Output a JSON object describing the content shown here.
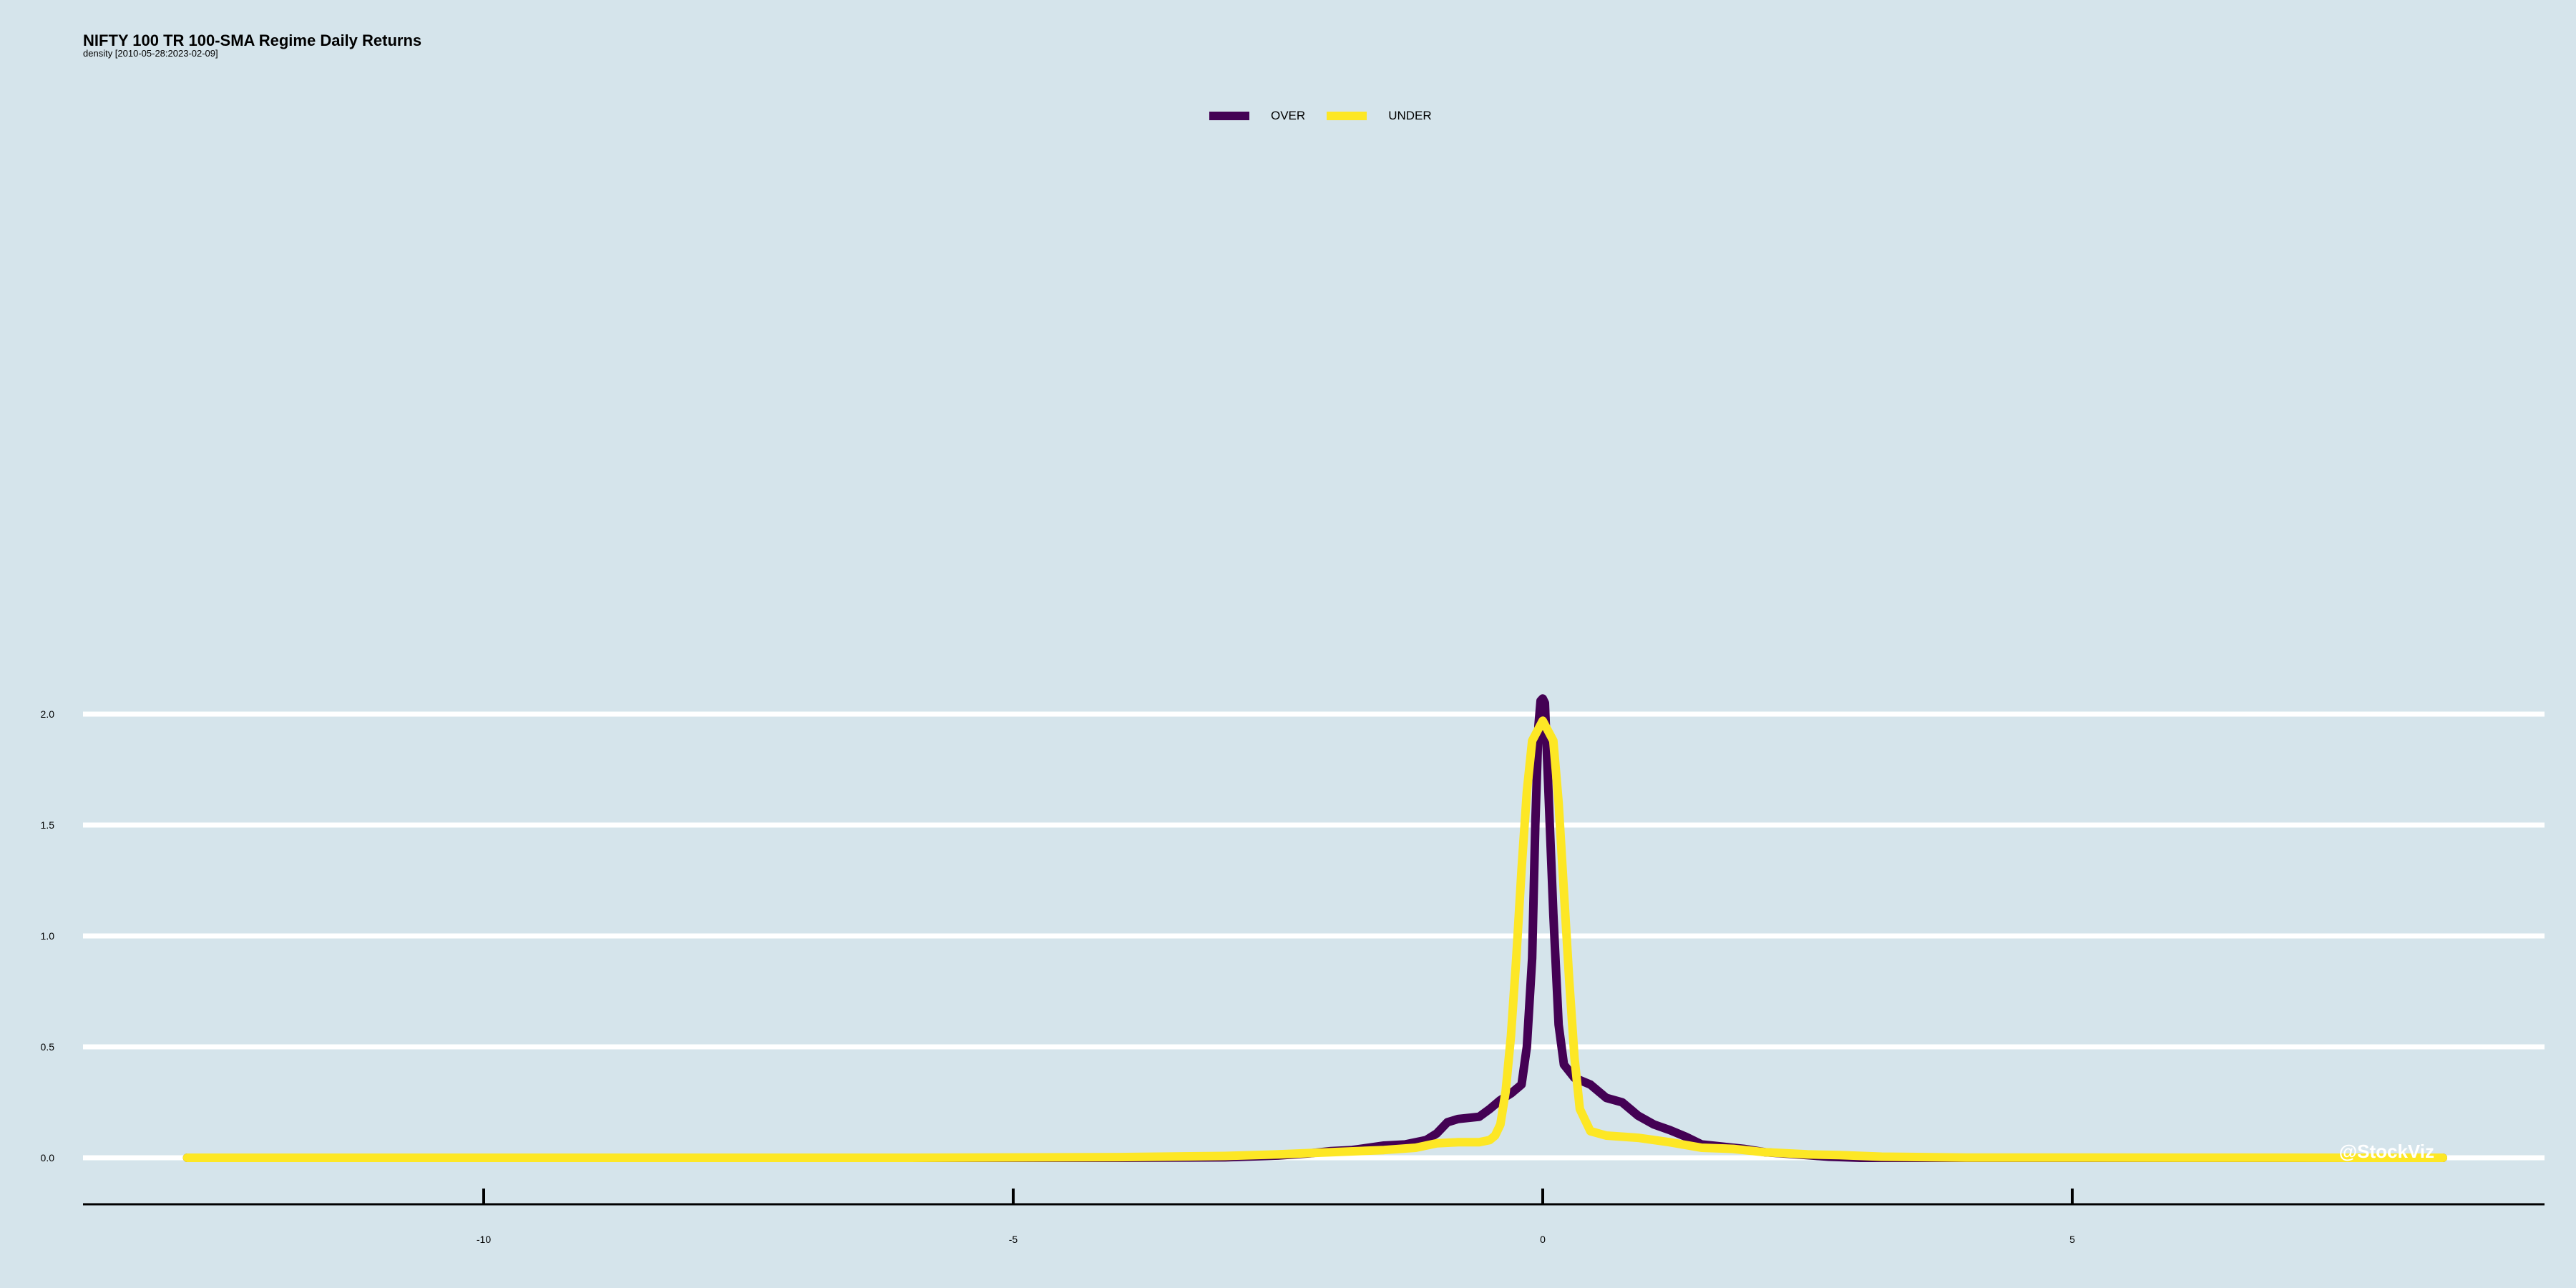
{
  "chart_data": {
    "type": "line",
    "title": "NIFTY 100 TR 100-SMA Regime Daily Returns",
    "subtitle": "density [2010-05-28:2023-02-09]",
    "xlabel": "",
    "ylabel": "",
    "xlim": [
      -13.8,
      9.5
    ],
    "ylim": [
      -0.1,
      2.3
    ],
    "x_ticks": [
      -10,
      -5,
      0,
      5
    ],
    "x_tick_labels": [
      "-10",
      "-5",
      "0",
      "5"
    ],
    "y_ticks": [
      0.0,
      0.5,
      1.0,
      1.5,
      2.0
    ],
    "y_tick_labels": [
      "0.0",
      "0.5",
      "1.0",
      "1.5",
      "2.0"
    ],
    "grid": "horizontal",
    "legend_position": "top",
    "watermark": "@StockViz",
    "colors": {
      "background": "#d5e4eb",
      "over": "#440154",
      "under": "#fde725",
      "grid": "#ffffff"
    },
    "series": [
      {
        "name": "OVER",
        "color": "#440154",
        "points": [
          [
            -12.8,
            0.0
          ],
          [
            -6.0,
            0.0
          ],
          [
            -4.0,
            0.0
          ],
          [
            -3.0,
            0.002
          ],
          [
            -2.5,
            0.01
          ],
          [
            -2.2,
            0.02
          ],
          [
            -2.0,
            0.03
          ],
          [
            -1.8,
            0.035
          ],
          [
            -1.5,
            0.055
          ],
          [
            -1.3,
            0.06
          ],
          [
            -1.1,
            0.08
          ],
          [
            -1.0,
            0.11
          ],
          [
            -0.9,
            0.16
          ],
          [
            -0.8,
            0.175
          ],
          [
            -0.6,
            0.185
          ],
          [
            -0.5,
            0.22
          ],
          [
            -0.4,
            0.26
          ],
          [
            -0.3,
            0.29
          ],
          [
            -0.2,
            0.33
          ],
          [
            -0.15,
            0.5
          ],
          [
            -0.1,
            0.9
          ],
          [
            -0.07,
            1.5
          ],
          [
            -0.04,
            1.95
          ],
          [
            -0.02,
            2.06
          ],
          [
            0.0,
            2.07
          ],
          [
            0.02,
            2.05
          ],
          [
            0.05,
            1.7
          ],
          [
            0.1,
            1.1
          ],
          [
            0.15,
            0.6
          ],
          [
            0.2,
            0.42
          ],
          [
            0.3,
            0.36
          ],
          [
            0.45,
            0.33
          ],
          [
            0.6,
            0.27
          ],
          [
            0.75,
            0.25
          ],
          [
            0.9,
            0.19
          ],
          [
            1.05,
            0.15
          ],
          [
            1.2,
            0.125
          ],
          [
            1.35,
            0.095
          ],
          [
            1.5,
            0.06
          ],
          [
            1.7,
            0.05
          ],
          [
            1.9,
            0.04
          ],
          [
            2.1,
            0.025
          ],
          [
            2.4,
            0.015
          ],
          [
            2.7,
            0.005
          ],
          [
            3.0,
            0.0
          ],
          [
            8.5,
            0.0
          ]
        ]
      },
      {
        "name": "UNDER",
        "color": "#fde725",
        "points": [
          [
            -12.8,
            0.0
          ],
          [
            -6.0,
            0.0
          ],
          [
            -4.0,
            0.003
          ],
          [
            -3.0,
            0.008
          ],
          [
            -2.5,
            0.015
          ],
          [
            -2.0,
            0.025
          ],
          [
            -1.5,
            0.035
          ],
          [
            -1.2,
            0.045
          ],
          [
            -1.0,
            0.065
          ],
          [
            -0.8,
            0.07
          ],
          [
            -0.6,
            0.07
          ],
          [
            -0.5,
            0.08
          ],
          [
            -0.45,
            0.1
          ],
          [
            -0.4,
            0.15
          ],
          [
            -0.35,
            0.3
          ],
          [
            -0.3,
            0.55
          ],
          [
            -0.25,
            0.9
          ],
          [
            -0.2,
            1.3
          ],
          [
            -0.15,
            1.65
          ],
          [
            -0.1,
            1.88
          ],
          [
            0.0,
            1.97
          ],
          [
            0.1,
            1.88
          ],
          [
            0.15,
            1.6
          ],
          [
            0.2,
            1.2
          ],
          [
            0.25,
            0.8
          ],
          [
            0.3,
            0.45
          ],
          [
            0.35,
            0.22
          ],
          [
            0.45,
            0.12
          ],
          [
            0.6,
            0.1
          ],
          [
            0.9,
            0.09
          ],
          [
            1.2,
            0.07
          ],
          [
            1.5,
            0.045
          ],
          [
            1.8,
            0.04
          ],
          [
            2.1,
            0.025
          ],
          [
            2.5,
            0.015
          ],
          [
            2.8,
            0.012
          ],
          [
            3.2,
            0.005
          ],
          [
            4.0,
            0.001
          ],
          [
            8.5,
            0.0
          ]
        ]
      }
    ]
  }
}
